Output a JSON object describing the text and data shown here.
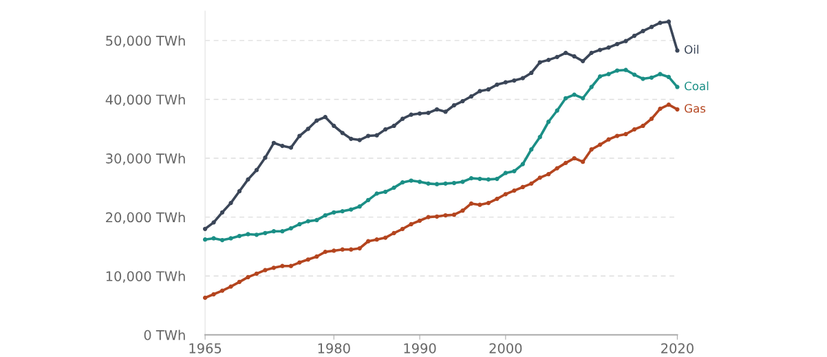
{
  "chart_data": {
    "type": "line",
    "xlim": [
      1965,
      2020
    ],
    "xticks": [
      1965,
      1980,
      1990,
      2000,
      2020
    ],
    "ylim": [
      0,
      55000
    ],
    "yticks": [
      {
        "value": 0,
        "label": "0 TWh"
      },
      {
        "value": 10000,
        "label": "10,000 TWh"
      },
      {
        "value": 20000,
        "label": "20,000 TWh"
      },
      {
        "value": 30000,
        "label": "30,000 TWh"
      },
      {
        "value": 40000,
        "label": "40,000 TWh"
      },
      {
        "value": 50000,
        "label": "50,000 TWh"
      }
    ],
    "grid": "y",
    "legend": false,
    "marker": "circle",
    "line_style": "solid",
    "x": [
      1965,
      1966,
      1967,
      1968,
      1969,
      1970,
      1971,
      1972,
      1973,
      1974,
      1975,
      1976,
      1977,
      1978,
      1979,
      1980,
      1981,
      1982,
      1983,
      1984,
      1985,
      1986,
      1987,
      1988,
      1989,
      1990,
      1991,
      1992,
      1993,
      1994,
      1995,
      1996,
      1997,
      1998,
      1999,
      2000,
      2001,
      2002,
      2003,
      2004,
      2005,
      2006,
      2007,
      2008,
      2009,
      2010,
      2011,
      2012,
      2013,
      2014,
      2015,
      2016,
      2017,
      2018,
      2019,
      2020
    ],
    "series": [
      {
        "name": "Oil",
        "color": "#3b4658",
        "values": [
          18000,
          19100,
          20800,
          22400,
          24400,
          26400,
          28000,
          30100,
          32600,
          32100,
          31800,
          33800,
          35000,
          36400,
          37000,
          35500,
          34300,
          33300,
          33100,
          33800,
          33900,
          34900,
          35500,
          36700,
          37400,
          37600,
          37700,
          38300,
          37900,
          39000,
          39700,
          40500,
          41400,
          41700,
          42500,
          42900,
          43200,
          43600,
          44500,
          46300,
          46700,
          47200,
          47900,
          47300,
          46500,
          47900,
          48400,
          48800,
          49400,
          49900,
          50800,
          51600,
          52300,
          53000,
          53200,
          48300
        ]
      },
      {
        "name": "Coal",
        "color": "#1b8f86",
        "values": [
          16200,
          16400,
          16100,
          16400,
          16800,
          17100,
          17000,
          17300,
          17600,
          17600,
          18100,
          18800,
          19300,
          19500,
          20300,
          20800,
          21000,
          21300,
          21800,
          22900,
          24000,
          24300,
          25000,
          25900,
          26200,
          26000,
          25700,
          25600,
          25700,
          25800,
          26000,
          26600,
          26500,
          26400,
          26500,
          27500,
          27800,
          29000,
          31500,
          33600,
          36200,
          38100,
          40200,
          40800,
          40200,
          42100,
          43900,
          44300,
          44900,
          45000,
          44200,
          43500,
          43700,
          44300,
          43800,
          42100
        ]
      },
      {
        "name": "Gas",
        "color": "#b4451f",
        "values": [
          6300,
          6900,
          7500,
          8200,
          9000,
          9800,
          10400,
          11000,
          11400,
          11700,
          11700,
          12300,
          12800,
          13300,
          14100,
          14300,
          14500,
          14500,
          14700,
          15900,
          16200,
          16500,
          17300,
          18000,
          18800,
          19400,
          20000,
          20100,
          20300,
          20400,
          21100,
          22300,
          22100,
          22400,
          23100,
          23900,
          24500,
          25100,
          25700,
          26700,
          27300,
          28300,
          29200,
          30000,
          29400,
          31500,
          32300,
          33200,
          33800,
          34100,
          34900,
          35500,
          36700,
          38400,
          39100,
          38300
        ]
      }
    ]
  }
}
